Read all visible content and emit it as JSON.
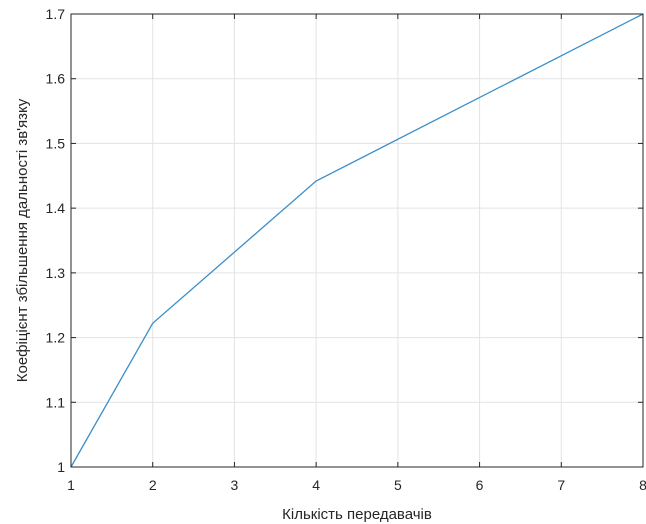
{
  "chart_data": {
    "type": "line",
    "xlabel": "Кількість передавачів",
    "ylabel": "Коефіцієнт збільшення дальності зв'язку",
    "xlim": [
      1,
      8
    ],
    "ylim": [
      1,
      1.7
    ],
    "grid": true,
    "x_ticks": [
      "1",
      "2",
      "3",
      "4",
      "5",
      "6",
      "7",
      "8"
    ],
    "y_ticks": [
      "1",
      "1.1",
      "1.2",
      "1.3",
      "1.4",
      "1.5",
      "1.6",
      "1.7"
    ],
    "series": [
      {
        "color": "#3a8fc9",
        "x": [
          1,
          2,
          4,
          8
        ],
        "y": [
          1.0,
          1.222,
          1.442,
          1.7
        ]
      }
    ]
  }
}
